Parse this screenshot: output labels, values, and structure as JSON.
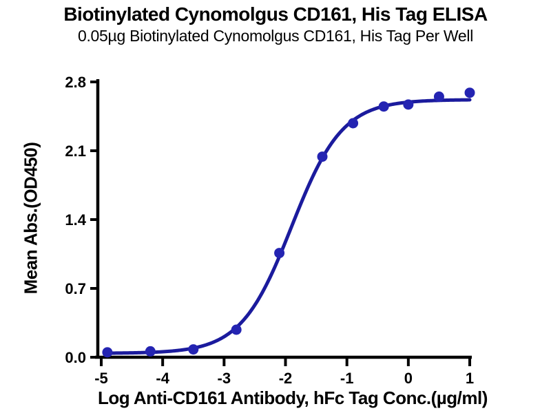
{
  "chart_data": {
    "type": "scatter",
    "title": "Biotinylated Cynomolgus CD161, His Tag ELISA",
    "subtitle": "0.05µg Biotinylated Cynomolgus CD161, His Tag Per Well",
    "xlabel": "Log Anti-CD161 Antibody, hFc Tag Conc.(µg/ml)",
    "ylabel": "Mean Abs.(OD450)",
    "x_ticks": [
      -5,
      -4,
      -3,
      -2,
      -1,
      0,
      1
    ],
    "x_tick_labels": [
      "-5",
      "-4",
      "-3",
      "-2",
      "-1",
      "0",
      "1"
    ],
    "y_ticks": [
      0.0,
      0.7,
      1.4,
      2.1,
      2.8
    ],
    "y_tick_labels": [
      "0.0",
      "0.7",
      "1.4",
      "2.1",
      "2.8"
    ],
    "xlim": [
      -5.05,
      1.05
    ],
    "ylim": [
      0.0,
      2.8
    ],
    "grid": false,
    "legend": "none",
    "points": [
      {
        "x": -4.9,
        "y": 0.05
      },
      {
        "x": -4.2,
        "y": 0.06
      },
      {
        "x": -3.5,
        "y": 0.08
      },
      {
        "x": -2.8,
        "y": 0.28
      },
      {
        "x": -2.1,
        "y": 1.06
      },
      {
        "x": -1.4,
        "y": 2.04
      },
      {
        "x": -0.9,
        "y": 2.38
      },
      {
        "x": -0.4,
        "y": 2.55
      },
      {
        "x": 0.0,
        "y": 2.57
      },
      {
        "x": 0.5,
        "y": 2.65
      },
      {
        "x": 1.0,
        "y": 2.69
      }
    ],
    "fit_curve": {
      "model": "4PL",
      "bottom": 0.04,
      "top": 2.62,
      "log_ec50": -1.9,
      "hill_slope": 1.05,
      "x_start": -4.9,
      "x_end": 1.0
    },
    "colors": {
      "point": "#2424b2",
      "line": "#1b1b9d",
      "axis": "#000000",
      "background": "#ffffff"
    }
  }
}
